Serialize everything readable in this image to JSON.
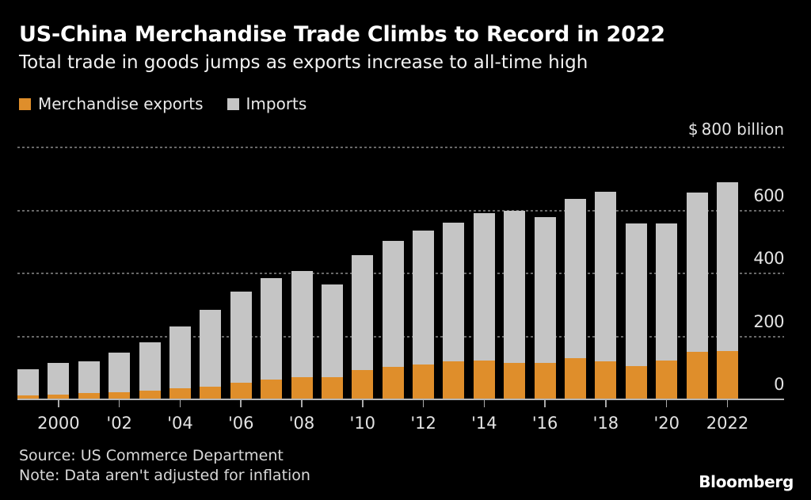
{
  "header": {
    "title": "US-China Merchandise Trade Climbs to Record in 2022",
    "subtitle": "Total trade in goods jumps as exports increase to all-time high"
  },
  "axis": {
    "unit_label": "$ 800 billion"
  },
  "footer": {
    "source": "Source: US Commerce Department",
    "note": "Note: Data aren't adjusted for inflation",
    "logo": "Bloomberg"
  },
  "colors": {
    "background": "#000000",
    "exports_orange": "#DF8E2B",
    "imports_gray": "#C5C5C5",
    "gridline": "#686868",
    "axis_line": "#B5B5B5",
    "label_text": "#E3E3E3"
  },
  "chart_data": {
    "type": "bar",
    "stacked": true,
    "title": "US-China Merchandise Trade Climbs to Record in 2022",
    "subtitle": "Total trade in goods jumps as exports increase to all-time high",
    "unit": "US$ billion",
    "ylim": [
      0,
      800
    ],
    "grid": "horizontal-dotted",
    "legend_position": "top-left",
    "gridline_values": [
      200,
      400,
      600,
      800
    ],
    "y_ticks": [
      {
        "value": 600,
        "label": "600"
      },
      {
        "value": 400,
        "label": "400"
      },
      {
        "value": 200,
        "label": "200"
      },
      {
        "value": 0,
        "label": "0"
      }
    ],
    "x_ticks": [
      {
        "year": 2000,
        "label": "2000"
      },
      {
        "year": 2002,
        "label": "'02"
      },
      {
        "year": 2004,
        "label": "'04"
      },
      {
        "year": 2006,
        "label": "'06"
      },
      {
        "year": 2008,
        "label": "'08"
      },
      {
        "year": 2010,
        "label": "'10"
      },
      {
        "year": 2012,
        "label": "'12"
      },
      {
        "year": 2014,
        "label": "'14"
      },
      {
        "year": 2016,
        "label": "'16"
      },
      {
        "year": 2018,
        "label": "'18"
      },
      {
        "year": 2020,
        "label": "'20"
      },
      {
        "year": 2022,
        "label": "2022"
      }
    ],
    "categories": [
      1999,
      2000,
      2001,
      2002,
      2003,
      2004,
      2005,
      2006,
      2007,
      2008,
      2009,
      2010,
      2011,
      2012,
      2013,
      2014,
      2015,
      2016,
      2017,
      2018,
      2019,
      2020,
      2021,
      2022
    ],
    "series": [
      {
        "name": "Merchandise exports",
        "color": "#DF8E2B",
        "values": [
          13.1,
          16.2,
          19.2,
          22.1,
          28.4,
          34.4,
          41.2,
          53.7,
          62.9,
          69.7,
          69.5,
          91.9,
          104.1,
          110.5,
          121.7,
          123.7,
          115.9,
          115.6,
          129.8,
          120.3,
          106.4,
          124.5,
          151.1,
          153.8
        ]
      },
      {
        "name": "Imports",
        "color": "#C5C5C5",
        "values": [
          81.8,
          100.0,
          102.3,
          125.2,
          152.4,
          196.7,
          243.5,
          287.8,
          321.4,
          337.8,
          296.4,
          364.9,
          399.4,
          425.6,
          440.4,
          468.5,
          483.2,
          462.6,
          505.5,
          539.5,
          452.2,
          434.7,
          506.4,
          536.3
        ]
      }
    ]
  }
}
